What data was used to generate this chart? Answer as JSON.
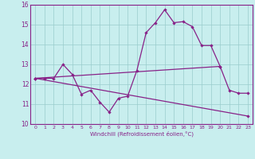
{
  "xlabel": "Windchill (Refroidissement éolien,°C)",
  "x_hours": [
    0,
    1,
    2,
    3,
    4,
    5,
    6,
    7,
    8,
    9,
    10,
    11,
    12,
    13,
    14,
    15,
    16,
    17,
    18,
    19,
    20,
    21,
    22,
    23
  ],
  "line1": [
    12.3,
    12.3,
    12.3,
    13.0,
    12.5,
    11.5,
    11.7,
    11.1,
    10.6,
    11.3,
    11.4,
    12.7,
    14.6,
    15.1,
    15.75,
    15.1,
    15.15,
    14.9,
    13.95,
    13.95,
    12.9,
    11.7,
    11.55,
    11.55
  ],
  "line2_x": [
    0,
    20
  ],
  "line2_y": [
    12.3,
    12.9
  ],
  "line3_x": [
    0,
    23
  ],
  "line3_y": [
    12.3,
    10.4
  ],
  "ylim": [
    10,
    16
  ],
  "xlim_min": -0.5,
  "xlim_max": 23.5,
  "bg_color": "#c8eeee",
  "line_color": "#882288",
  "grid_color": "#99cccc",
  "spine_color": "#882288"
}
